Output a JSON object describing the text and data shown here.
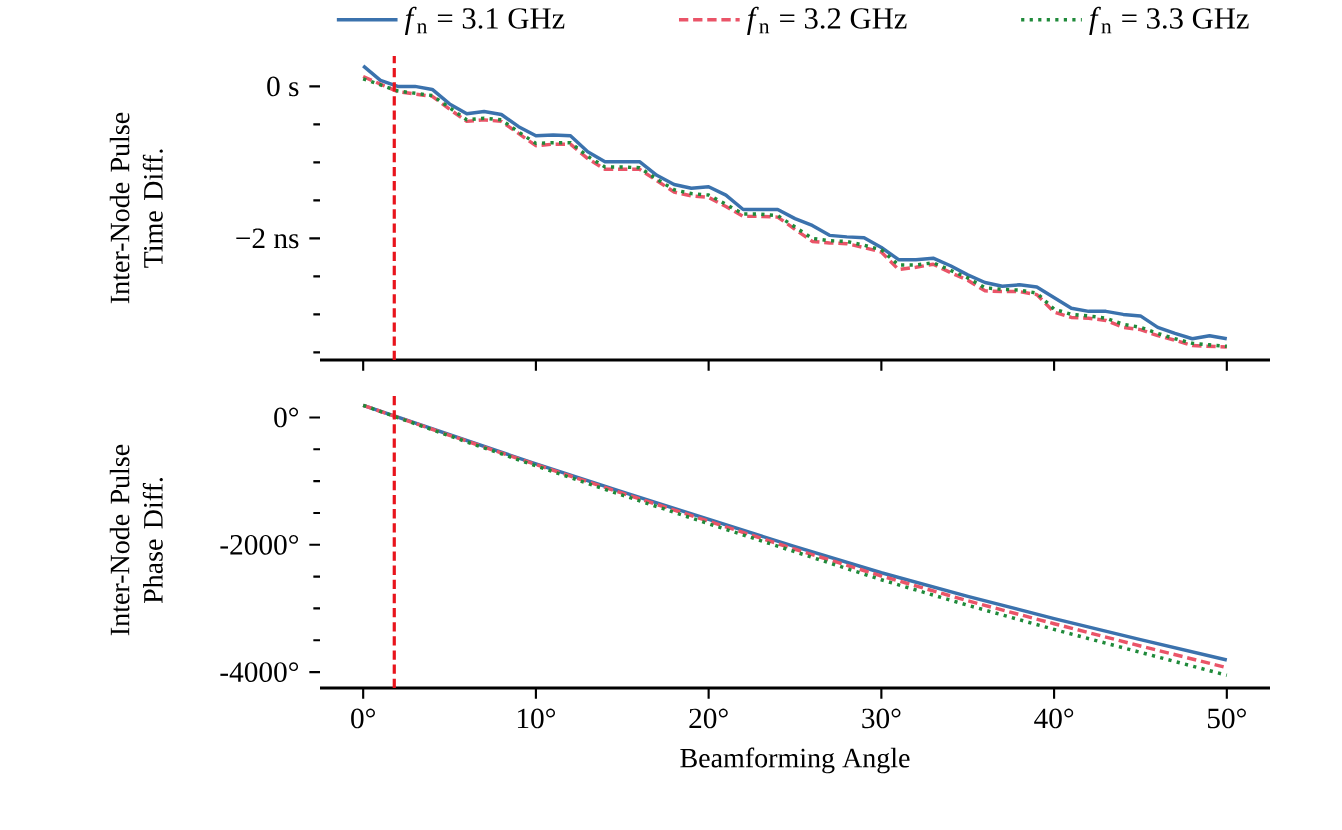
{
  "chart_data": [
    {
      "type": "line",
      "ylabel": "Inter-Node Pulse Time Diff.",
      "legend": "top",
      "marker": "none",
      "tick_labels": "y",
      "x": [
        0,
        1,
        2,
        3,
        4,
        5,
        6,
        7,
        8,
        9,
        10,
        11,
        12,
        13,
        14,
        15,
        16,
        17,
        18,
        19,
        20,
        21,
        22,
        23,
        24,
        25,
        26,
        27,
        28,
        29,
        30,
        31,
        32,
        33,
        34,
        35,
        36,
        37,
        38,
        39,
        40,
        41,
        42,
        43,
        44,
        45,
        46,
        47,
        48,
        49,
        50
      ],
      "xlim": [
        -2.5,
        52.5
      ],
      "xticks": [
        0,
        10,
        20,
        30,
        40,
        50
      ],
      "ylim": [
        -3.6,
        0.4
      ],
      "yticks": [
        {
          "value": 0,
          "label": "0 s"
        },
        {
          "value": -0.5,
          "label": null
        },
        {
          "value": -1,
          "label": null
        },
        {
          "value": -1.5,
          "label": null
        },
        {
          "value": -2,
          "label": "−2 ns"
        },
        {
          "value": -2.5,
          "label": null
        },
        {
          "value": -3,
          "label": null
        },
        {
          "value": -3.5,
          "label": null
        }
      ],
      "ref_lines": [
        {
          "axis": "x",
          "value": 1.8,
          "color": "#e8141c",
          "line_style": "dashed"
        }
      ],
      "series": [
        {
          "name": "*f*$_{n}$ = 3.1 GHz",
          "color": "#3b72ad",
          "line_style": "solid",
          "values": [
            0.27,
            0.08,
            0,
            0,
            -0.04,
            -0.23,
            -0.36,
            -0.33,
            -0.37,
            -0.53,
            -0.65,
            -0.64,
            -0.65,
            -0.86,
            -0.99,
            -0.99,
            -0.99,
            -1.17,
            -1.29,
            -1.34,
            -1.32,
            -1.43,
            -1.62,
            -1.62,
            -1.62,
            -1.74,
            -1.83,
            -1.96,
            -1.98,
            -1.99,
            -2.12,
            -2.28,
            -2.28,
            -2.26,
            -2.36,
            -2.48,
            -2.58,
            -2.63,
            -2.61,
            -2.64,
            -2.78,
            -2.92,
            -2.96,
            -2.96,
            -3.0,
            -3.02,
            -3.17,
            -3.25,
            -3.32,
            -3.28,
            -3.32
          ]
        },
        {
          "name": "*f*$_{n}$ = 3.2 GHz",
          "color": "#ea5468",
          "line_style": "dashed",
          "values": [
            0.13,
            0.03,
            -0.07,
            -0.1,
            -0.13,
            -0.3,
            -0.46,
            -0.44,
            -0.46,
            -0.62,
            -0.78,
            -0.76,
            -0.76,
            -0.95,
            -1.09,
            -1.09,
            -1.09,
            -1.24,
            -1.39,
            -1.44,
            -1.46,
            -1.58,
            -1.71,
            -1.71,
            -1.72,
            -1.88,
            -2.04,
            -2.06,
            -2.07,
            -2.12,
            -2.18,
            -2.41,
            -2.38,
            -2.34,
            -2.45,
            -2.55,
            -2.69,
            -2.7,
            -2.7,
            -2.74,
            -2.97,
            -3.04,
            -3.05,
            -3.08,
            -3.17,
            -3.2,
            -3.28,
            -3.34,
            -3.41,
            -3.42,
            -3.43
          ]
        },
        {
          "name": "*f*$_{n}$ = 3.3 GHz",
          "color": "#1f8a3a",
          "line_style": "dotted",
          "values": [
            0.1,
            0.02,
            -0.06,
            -0.09,
            -0.12,
            -0.28,
            -0.44,
            -0.42,
            -0.44,
            -0.6,
            -0.75,
            -0.74,
            -0.74,
            -0.92,
            -1.06,
            -1.06,
            -1.07,
            -1.22,
            -1.36,
            -1.41,
            -1.43,
            -1.55,
            -1.68,
            -1.68,
            -1.7,
            -1.85,
            -2.0,
            -2.03,
            -2.04,
            -2.09,
            -2.15,
            -2.35,
            -2.35,
            -2.32,
            -2.42,
            -2.52,
            -2.65,
            -2.67,
            -2.68,
            -2.72,
            -2.93,
            -3.0,
            -3.02,
            -3.05,
            -3.13,
            -3.17,
            -3.25,
            -3.32,
            -3.38,
            -3.4,
            -3.42
          ]
        }
      ]
    },
    {
      "type": "line",
      "xlabel": "Beamforming Angle",
      "ylabel": "Inter-Node Pulse Phase Diff.",
      "marker": "none",
      "x": [
        0,
        5,
        10,
        15,
        20,
        25,
        30,
        35,
        40,
        45,
        50
      ],
      "xlim": [
        -2.5,
        52.5
      ],
      "xticks": [
        {
          "value": 0,
          "label": "0°"
        },
        {
          "value": 10,
          "label": "10°"
        },
        {
          "value": 20,
          "label": "20°"
        },
        {
          "value": 30,
          "label": "30°"
        },
        {
          "value": 40,
          "label": "40°"
        },
        {
          "value": 50,
          "label": "50°"
        }
      ],
      "ylim": [
        -4250,
        400
      ],
      "yticks": [
        {
          "value": 0,
          "label": "0°"
        },
        {
          "value": -500,
          "label": null
        },
        {
          "value": -1000,
          "label": null
        },
        {
          "value": -1500,
          "label": null
        },
        {
          "value": -2000,
          "label": "-2000°"
        },
        {
          "value": -2500,
          "label": null
        },
        {
          "value": -3000,
          "label": null
        },
        {
          "value": -3500,
          "label": null
        },
        {
          "value": -4000,
          "label": "-4000°"
        }
      ],
      "ref_lines": [
        {
          "axis": "x",
          "value": 1.8,
          "color": "#e8141c",
          "line_style": "dashed"
        }
      ],
      "series": [
        {
          "color": "#3b72ad",
          "line_style": "solid",
          "values": [
            190,
            -270,
            -730,
            -1170,
            -1600,
            -2030,
            -2440,
            -2810,
            -3160,
            -3490,
            -3810
          ]
        },
        {
          "color": "#ea5468",
          "line_style": "dashed",
          "values": [
            190,
            -280,
            -740,
            -1190,
            -1630,
            -2070,
            -2490,
            -2880,
            -3240,
            -3590,
            -3930
          ]
        },
        {
          "color": "#1f8a3a",
          "line_style": "dotted",
          "values": [
            190,
            -290,
            -760,
            -1220,
            -1670,
            -2110,
            -2550,
            -2950,
            -3330,
            -3690,
            -4050
          ]
        }
      ]
    }
  ]
}
